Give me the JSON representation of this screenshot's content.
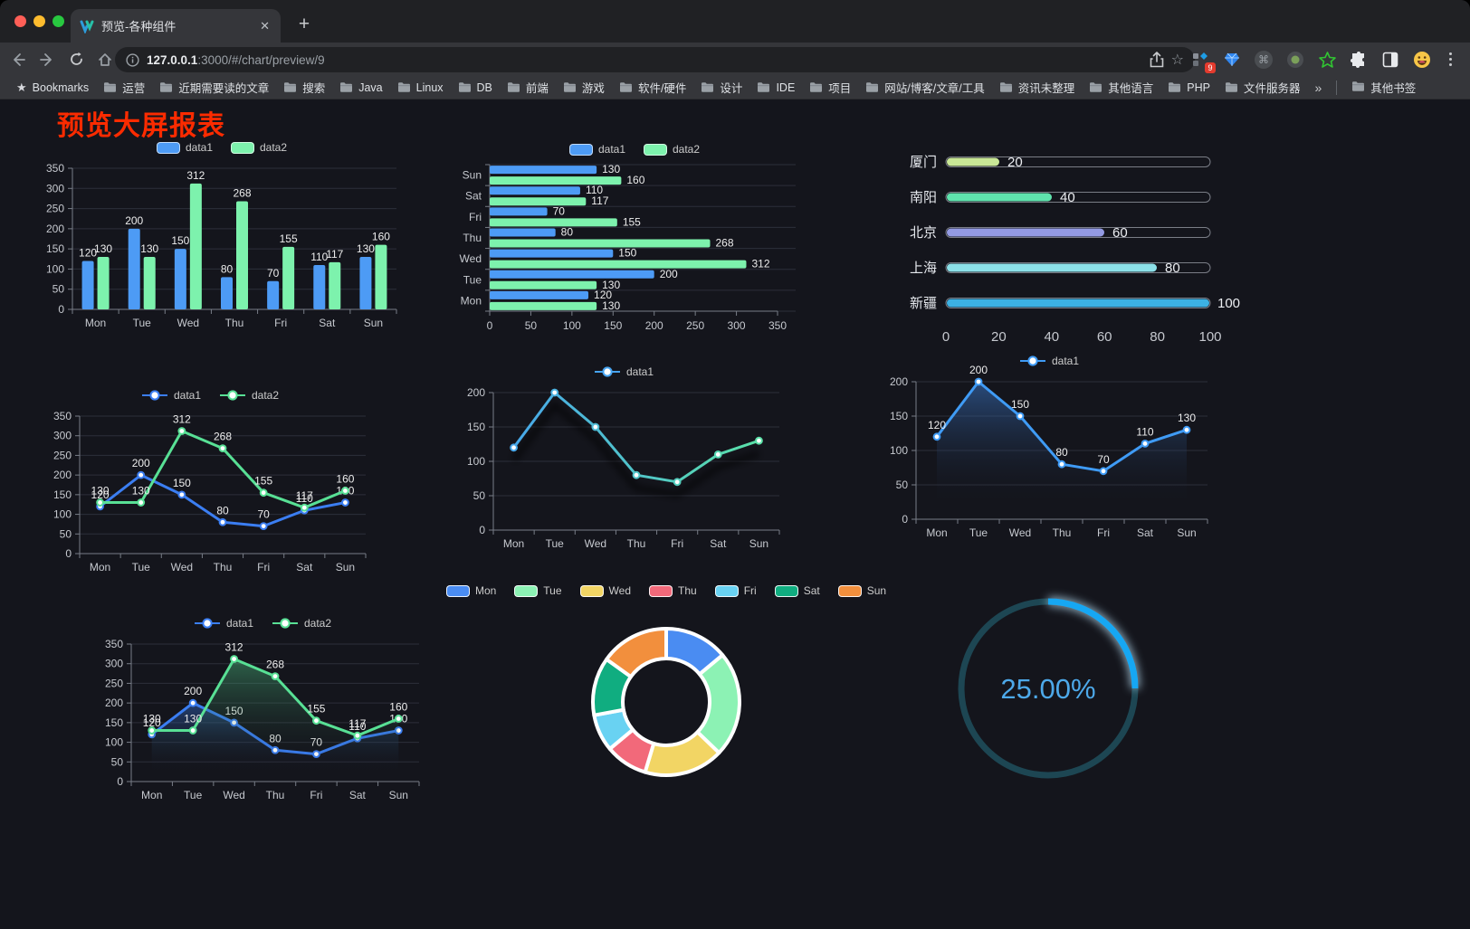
{
  "window": {
    "tab_title": "预览-各种组件",
    "url_host": "127.0.0.1",
    "url_path": ":3000/#/chart/preview/9",
    "extension_badge": "9"
  },
  "icons": {
    "close": "✕",
    "new_tab": "+",
    "back": "←",
    "forward": "→",
    "star": "☆",
    "bookmarks_star": "★",
    "command": "⌘",
    "overflow": "»"
  },
  "bookmarks": {
    "bookmarks_label": "Bookmarks",
    "folders": [
      "运营",
      "近期需要读的文章",
      "搜索",
      "Java",
      "Linux",
      "DB",
      "前端",
      "游戏",
      "软件/硬件",
      "设计",
      "IDE",
      "项目",
      "网站/博客/文章/工具",
      "资讯未整理",
      "其他语言",
      "PHP",
      "文件服务器"
    ],
    "other_label": "其他书签"
  },
  "page": {
    "title": "预览大屏报表",
    "background": "#14151c",
    "title_color": "#fb2b00"
  },
  "chart_data": [
    {
      "id": "c1",
      "type": "bar",
      "legend_style": "rect",
      "categories": [
        "Mon",
        "Tue",
        "Wed",
        "Thu",
        "Fri",
        "Sat",
        "Sun"
      ],
      "series": [
        {
          "name": "data1",
          "color": "#4d9bf5",
          "values": [
            120,
            200,
            150,
            80,
            70,
            110,
            130
          ]
        },
        {
          "name": "data2",
          "color": "#7df2ad",
          "values": [
            130,
            130,
            312,
            268,
            155,
            117,
            160
          ]
        }
      ],
      "ylim": [
        0,
        350
      ],
      "ystep": 50,
      "labels": true,
      "grid": true
    },
    {
      "id": "c2",
      "type": "bar",
      "orientation": "horizontal",
      "legend_style": "rect",
      "categories": [
        "Sun",
        "Sat",
        "Fri",
        "Thu",
        "Wed",
        "Tue",
        "Mon"
      ],
      "series": [
        {
          "name": "data1",
          "color": "#4d9bf5",
          "values": [
            130,
            110,
            70,
            80,
            150,
            200,
            120
          ]
        },
        {
          "name": "data2",
          "color": "#7df2ad",
          "values": [
            160,
            117,
            155,
            268,
            312,
            130,
            130
          ]
        }
      ],
      "xlim": [
        0,
        350
      ],
      "xstep": 50,
      "labels": true
    },
    {
      "id": "c3",
      "type": "bar",
      "subtype": "progress",
      "rows": [
        {
          "label": "厦门",
          "value": 20,
          "color": "#c9e796"
        },
        {
          "label": "南阳",
          "value": 40,
          "color": "#5fe3ad"
        },
        {
          "label": "北京",
          "value": 60,
          "color": "#939ae3"
        },
        {
          "label": "上海",
          "value": 80,
          "color": "#8ce0e8"
        },
        {
          "label": "新疆",
          "value": 100,
          "color": "#3cb1e3"
        }
      ],
      "xlim": [
        0,
        100
      ],
      "ticks": [
        0,
        20,
        40,
        60,
        80,
        100
      ]
    },
    {
      "id": "c4",
      "type": "line",
      "legend_style": "line",
      "categories": [
        "Mon",
        "Tue",
        "Wed",
        "Thu",
        "Fri",
        "Sat",
        "Sun"
      ],
      "series": [
        {
          "name": "data1",
          "color": "#3b7ef2",
          "values": [
            120,
            200,
            150,
            80,
            70,
            110,
            130
          ]
        },
        {
          "name": "data2",
          "color": "#58e095",
          "values": [
            130,
            130,
            312,
            268,
            155,
            117,
            160
          ]
        }
      ],
      "ylim": [
        0,
        350
      ],
      "ystep": 50,
      "labels": true
    },
    {
      "id": "c5",
      "type": "line",
      "legend_style": "line",
      "gradient": [
        "#46a3f0",
        "#5ce6a2"
      ],
      "categories": [
        "Mon",
        "Tue",
        "Wed",
        "Thu",
        "Fri",
        "Sat",
        "Sun"
      ],
      "series": [
        {
          "name": "data1",
          "color": "#46a3f0",
          "values": [
            120,
            200,
            150,
            80,
            70,
            110,
            130
          ]
        }
      ],
      "ylim": [
        0,
        200
      ],
      "ystep": 50,
      "labels": false,
      "shadow": true
    },
    {
      "id": "c6",
      "type": "area",
      "legend_style": "line",
      "categories": [
        "Mon",
        "Tue",
        "Wed",
        "Thu",
        "Fri",
        "Sat",
        "Sun"
      ],
      "series": [
        {
          "name": "data1",
          "color": "#3f9bf5",
          "fill": "rgba(63,130,220,0.50)",
          "values": [
            120,
            200,
            150,
            80,
            70,
            110,
            130
          ]
        }
      ],
      "ylim": [
        0,
        200
      ],
      "ystep": 50,
      "labels": true
    },
    {
      "id": "c7",
      "type": "area",
      "legend_style": "line",
      "categories": [
        "Mon",
        "Tue",
        "Wed",
        "Thu",
        "Fri",
        "Sat",
        "Sun"
      ],
      "series": [
        {
          "name": "data1",
          "color": "#3b7ef2",
          "fill": "rgba(59,126,242,0.40)",
          "values": [
            120,
            200,
            150,
            80,
            70,
            110,
            130
          ]
        },
        {
          "name": "data2",
          "color": "#58e095",
          "fill": "rgba(88,224,149,0.38)",
          "values": [
            130,
            130,
            312,
            268,
            155,
            117,
            160
          ]
        }
      ],
      "ylim": [
        0,
        350
      ],
      "ystep": 50,
      "labels": true
    },
    {
      "id": "c8",
      "type": "pie",
      "donut": true,
      "slices": [
        {
          "label": "Mon",
          "value": 120,
          "color": "#4a8cf2"
        },
        {
          "label": "Tue",
          "value": 200,
          "color": "#8cf2b4"
        },
        {
          "label": "Wed",
          "value": 150,
          "color": "#f2d564"
        },
        {
          "label": "Thu",
          "value": 80,
          "color": "#f2697a"
        },
        {
          "label": "Fri",
          "value": 70,
          "color": "#69d2f2"
        },
        {
          "label": "Sat",
          "value": 110,
          "color": "#10ad80"
        },
        {
          "label": "Sun",
          "value": 130,
          "color": "#f28f3d"
        }
      ]
    },
    {
      "id": "c9",
      "type": "gauge",
      "value": 25,
      "label": "25.00%",
      "color": "#16a7f3",
      "track_color": "#1d4653",
      "text_color": "#4da9ea"
    }
  ]
}
